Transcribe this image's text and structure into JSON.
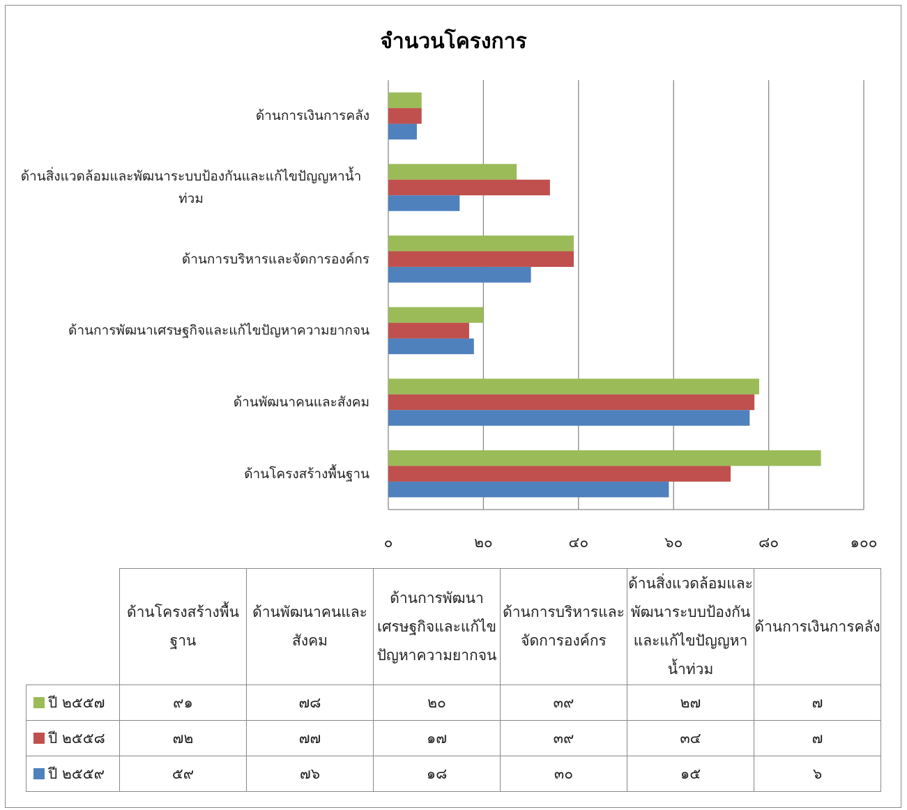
{
  "chart_data": {
    "type": "bar",
    "orientation": "horizontal",
    "title": "จำนวนโครงการ",
    "categories": [
      "ด้านโครงสร้างพื้นฐาน",
      "ด้านพัฒนาคนและสังคม",
      "ด้านการพัฒนาเศรษฐกิจและแก้ไขปัญหาความยากจน",
      "ด้านการบริหารและจัดการองค์กร",
      "ด้านสิ่งแวดล้อมและพัฒนาระบบป้องกันและแก้ไขปัญญหาน้ำท่วม",
      "ด้านการเงินการคลัง"
    ],
    "series": [
      {
        "name": "ปี ๒๕๕๗",
        "color": "#9bbb59",
        "values": [
          91,
          78,
          20,
          39,
          27,
          7
        ],
        "value_labels": [
          "๙๑",
          "๗๘",
          "๒๐",
          "๓๙",
          "๒๗",
          "๗"
        ]
      },
      {
        "name": "ปี ๒๕๕๘",
        "color": "#c0504d",
        "values": [
          72,
          77,
          17,
          39,
          34,
          7
        ],
        "value_labels": [
          "๗๒",
          "๗๗",
          "๑๗",
          "๓๙",
          "๓๔",
          "๗"
        ]
      },
      {
        "name": "ปี ๒๕๕๙",
        "color": "#4f81bd",
        "values": [
          59,
          76,
          18,
          30,
          15,
          6
        ],
        "value_labels": [
          "๕๙",
          "๗๖",
          "๑๘",
          "๓๐",
          "๑๕",
          "๖"
        ]
      }
    ],
    "xlim": [
      0,
      100
    ],
    "xticks": [
      {
        "value": 0,
        "label": "๐"
      },
      {
        "value": 20,
        "label": "๒๐"
      },
      {
        "value": 40,
        "label": "๔๐"
      },
      {
        "value": 60,
        "label": "๖๐"
      },
      {
        "value": 80,
        "label": "๘๐"
      },
      {
        "value": 100,
        "label": "๑๐๐"
      }
    ],
    "grid": true,
    "legend": "data-table"
  }
}
